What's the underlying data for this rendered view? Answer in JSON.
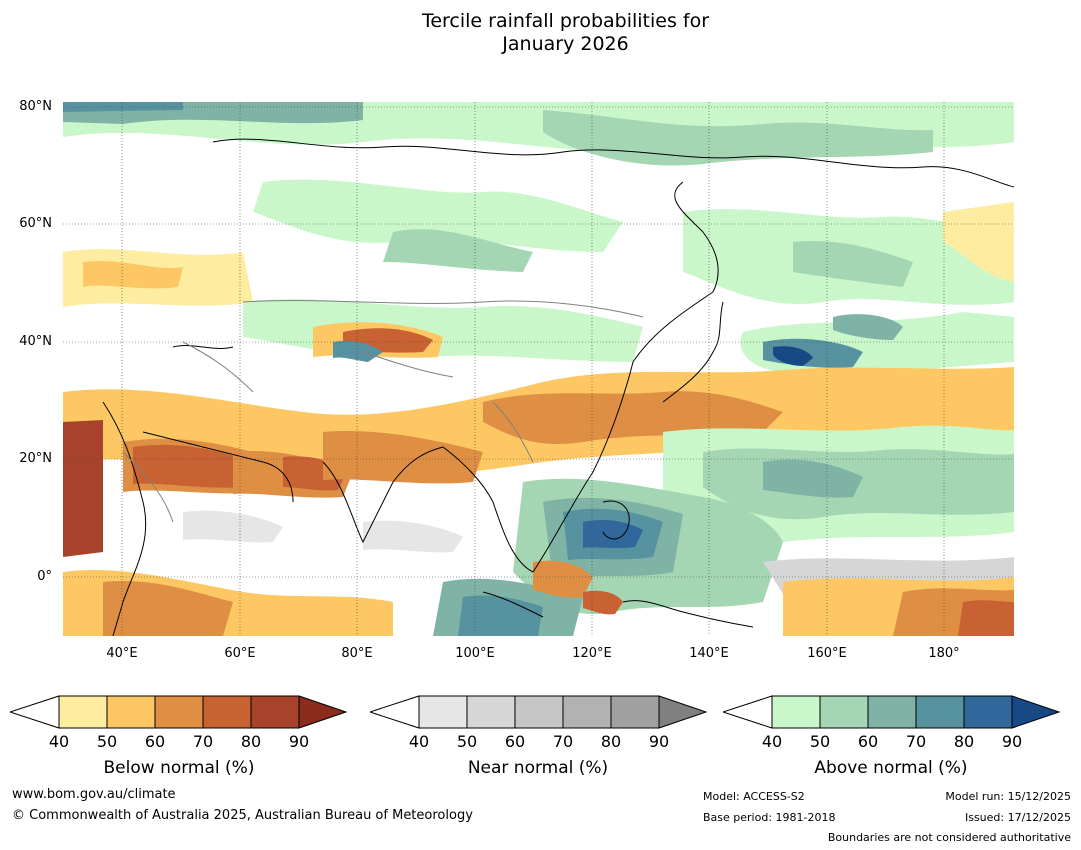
{
  "title_line1": "Tercile rainfall probabilities for",
  "title_line2": "January 2026",
  "lat_labels": [
    "80°N",
    "60°N",
    "40°N",
    "20°N",
    "0°"
  ],
  "lon_labels": [
    "40°E",
    "60°E",
    "80°E",
    "100°E",
    "120°E",
    "140°E",
    "160°E",
    "180°"
  ],
  "colorbars": [
    {
      "label": "Below normal (%)",
      "ticks": [
        "40",
        "50",
        "60",
        "70",
        "80",
        "90"
      ],
      "colors": [
        "#ffffff",
        "#feeca0",
        "#fdc863",
        "#de8f44",
        "#c86232",
        "#a7432a",
        "#8a2c1c"
      ]
    },
    {
      "label": "Near normal (%)",
      "ticks": [
        "40",
        "50",
        "60",
        "70",
        "80",
        "90"
      ],
      "colors": [
        "#ffffff",
        "#e6e6e6",
        "#d6d6d6",
        "#c6c6c6",
        "#b2b2b2",
        "#a0a0a0",
        "#808080"
      ]
    },
    {
      "label": "Above normal (%)",
      "ticks": [
        "40",
        "50",
        "60",
        "70",
        "80",
        "90"
      ],
      "colors": [
        "#ffffff",
        "#c9f7ca",
        "#a5d6b4",
        "#7fb3a6",
        "#5792a0",
        "#31679a",
        "#174a84"
      ]
    }
  ],
  "footer": {
    "url": "www.bom.gov.au/climate",
    "copyright": "© Commonwealth of Australia 2025, Australian Bureau of Meteorology",
    "model": "Model: ACCESS-S2",
    "base_period": "Base period: 1981-2018",
    "model_run": "Model run: 15/12/2025",
    "issued": "Issued: 17/12/2025",
    "boundaries": "Boundaries are not considered authoritative"
  }
}
